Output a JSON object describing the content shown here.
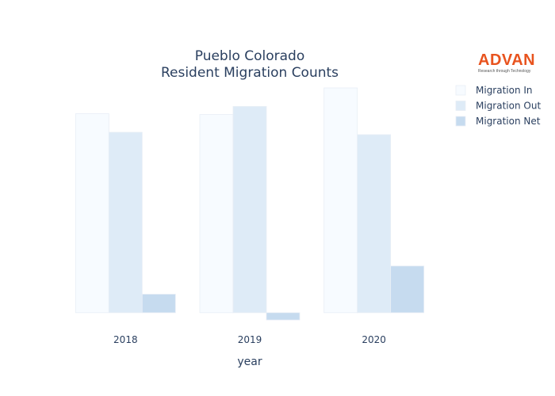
{
  "chart_data": {
    "type": "bar",
    "title_line1": "Pueblo Colorado",
    "title_line2": "Resident Migration Counts",
    "xlabel": "year",
    "ylabel": "",
    "categories": [
      "2018",
      "2019",
      "2020"
    ],
    "series": [
      {
        "name": "Migration In",
        "values": [
          2470,
          2460,
          2790
        ],
        "color": "#f7fbff"
      },
      {
        "name": "Migration Out",
        "values": [
          2240,
          2560,
          2210
        ],
        "color": "#deebf7"
      },
      {
        "name": "Migration Net",
        "values": [
          230,
          -90,
          580
        ],
        "color": "#c6dbef"
      }
    ],
    "ylim": [
      -100,
      2800
    ],
    "grid": false,
    "legend_position": "top-right"
  },
  "logo": {
    "name": "ADVAN",
    "tagline": "Research through Technology"
  }
}
